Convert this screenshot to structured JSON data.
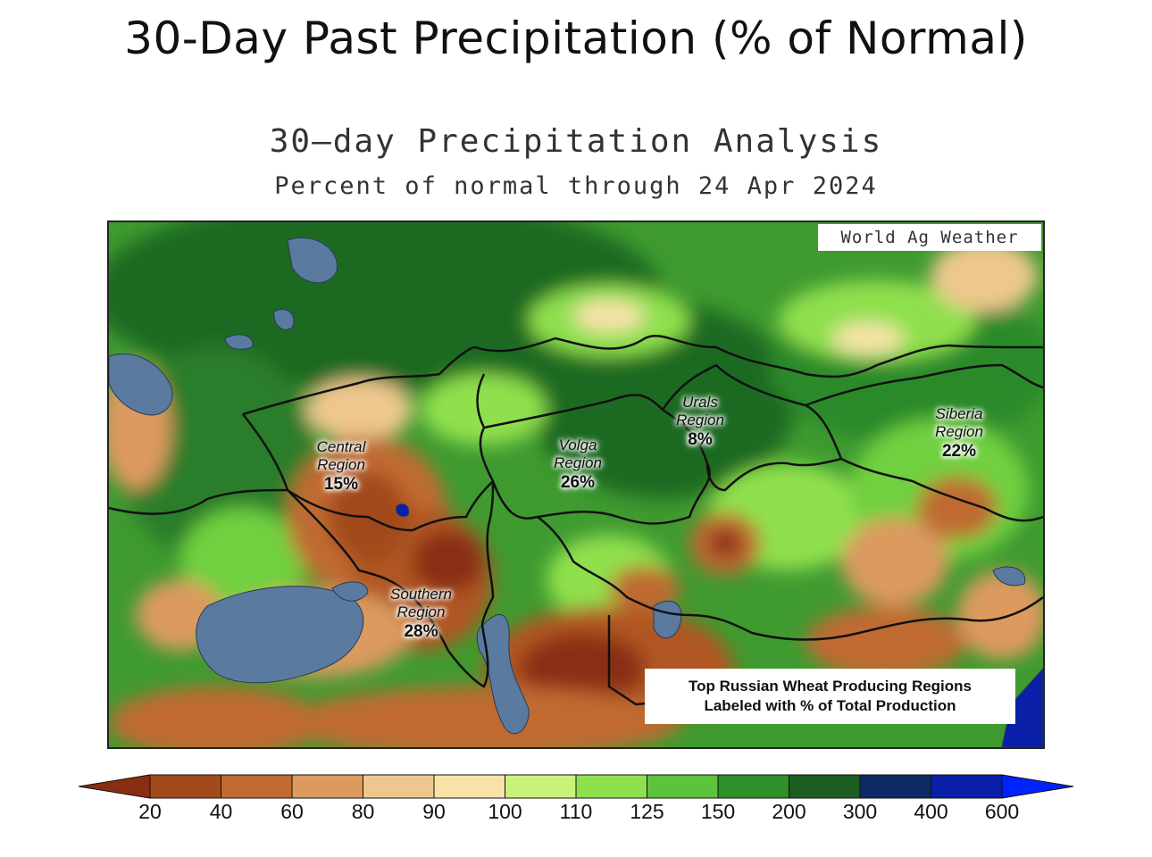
{
  "page_title": "30-Day Past Precipitation (% of Normal)",
  "map": {
    "title": "30—day Precipitation Analysis",
    "subtitle": "Percent of normal through 24 Apr 2024",
    "credit": "World Ag Weather",
    "legend_line1": "Top Russian Wheat Producing Regions",
    "legend_line2": "Labeled with % of Total Production",
    "regions": [
      {
        "name_line1": "Central",
        "name_line2": "Region",
        "pct": "15%"
      },
      {
        "name_line1": "Volga",
        "name_line2": "Region",
        "pct": "26%"
      },
      {
        "name_line1": "Urals",
        "name_line2": "Region",
        "pct": "8%"
      },
      {
        "name_line1": "Siberia",
        "name_line2": "Region",
        "pct": "22%"
      },
      {
        "name_line1": "Southern",
        "name_line2": "Region",
        "pct": "28%"
      }
    ]
  },
  "colorbar": {
    "ticks": [
      "20",
      "40",
      "60",
      "80",
      "90",
      "100",
      "110",
      "125",
      "150",
      "200",
      "300",
      "400",
      "600"
    ],
    "colors": {
      "below_20": "#8a2e12",
      "20_40": "#a24a1c",
      "40_60": "#c06a30",
      "60_80": "#dc9a5e",
      "80_90": "#eec78e",
      "90_100": "#f7e2a8",
      "100_110": "#c8f27a",
      "110_125": "#8fe04e",
      "125_150": "#5cc43a",
      "150_200": "#2f8f2a",
      "200_300": "#1b5e20",
      "300_400": "#0b2a66",
      "400_600": "#0a20a8",
      "above_600": "#0022ff"
    },
    "water": "#5a7aa0"
  }
}
